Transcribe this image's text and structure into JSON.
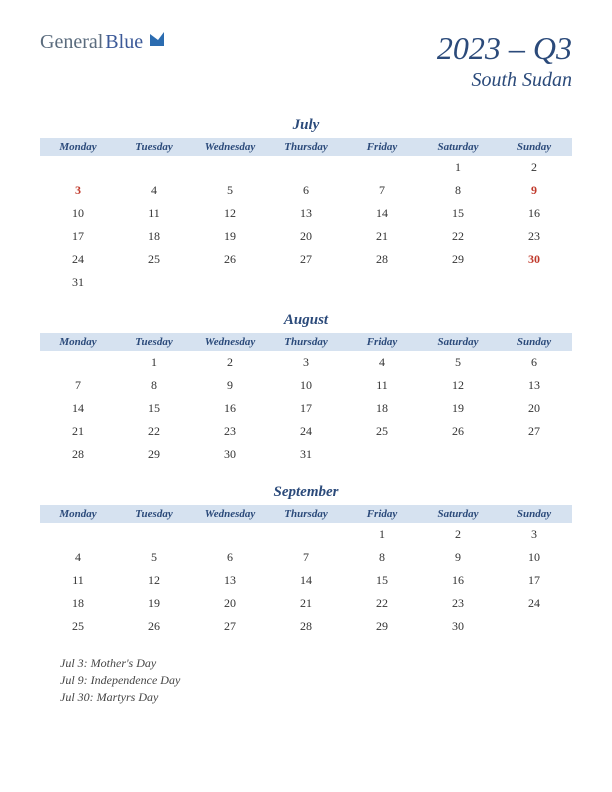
{
  "logo": {
    "general": "General",
    "blue": "Blue"
  },
  "title": "2023 – Q3",
  "subtitle": "South Sudan",
  "day_headers": [
    "Monday",
    "Tuesday",
    "Wednesday",
    "Thursday",
    "Friday",
    "Saturday",
    "Sunday"
  ],
  "header_bg": "#d6e2f0",
  "title_color": "#2b4a7a",
  "holiday_color": "#c0392b",
  "months": [
    {
      "name": "July",
      "weeks": [
        [
          "",
          "",
          "",
          "",
          "",
          "1",
          "2"
        ],
        [
          "3",
          "4",
          "5",
          "6",
          "7",
          "8",
          "9"
        ],
        [
          "10",
          "11",
          "12",
          "13",
          "14",
          "15",
          "16"
        ],
        [
          "17",
          "18",
          "19",
          "20",
          "21",
          "22",
          "23"
        ],
        [
          "24",
          "25",
          "26",
          "27",
          "28",
          "29",
          "30"
        ],
        [
          "31",
          "",
          "",
          "",
          "",
          "",
          ""
        ]
      ],
      "holidays": [
        "3",
        "9",
        "30"
      ]
    },
    {
      "name": "August",
      "weeks": [
        [
          "",
          "1",
          "2",
          "3",
          "4",
          "5",
          "6"
        ],
        [
          "7",
          "8",
          "9",
          "10",
          "11",
          "12",
          "13"
        ],
        [
          "14",
          "15",
          "16",
          "17",
          "18",
          "19",
          "20"
        ],
        [
          "21",
          "22",
          "23",
          "24",
          "25",
          "26",
          "27"
        ],
        [
          "28",
          "29",
          "30",
          "31",
          "",
          "",
          ""
        ]
      ],
      "holidays": []
    },
    {
      "name": "September",
      "weeks": [
        [
          "",
          "",
          "",
          "",
          "1",
          "2",
          "3"
        ],
        [
          "4",
          "5",
          "6",
          "7",
          "8",
          "9",
          "10"
        ],
        [
          "11",
          "12",
          "13",
          "14",
          "15",
          "16",
          "17"
        ],
        [
          "18",
          "19",
          "20",
          "21",
          "22",
          "23",
          "24"
        ],
        [
          "25",
          "26",
          "27",
          "28",
          "29",
          "30",
          ""
        ]
      ],
      "holidays": []
    }
  ],
  "holiday_list": [
    "Jul 3: Mother's Day",
    "Jul 9: Independence Day",
    "Jul 30: Martyrs Day"
  ]
}
